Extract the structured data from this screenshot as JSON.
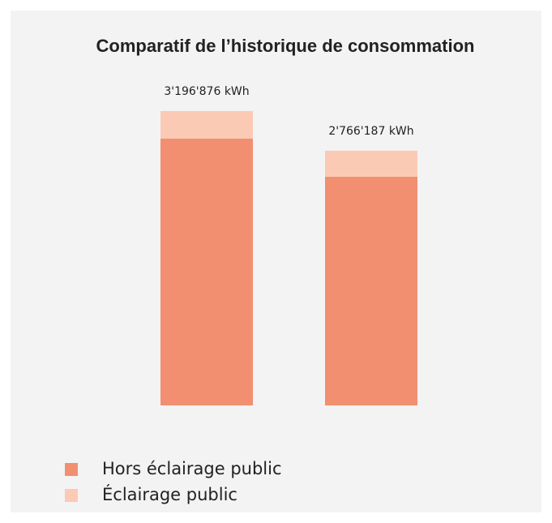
{
  "chart_data": {
    "type": "stacked-bar",
    "title": "Comparatif de l’historique de consommation",
    "categories": [
      null,
      null
    ],
    "series": [
      {
        "name": "Hors éclairage public",
        "color": "#f28f71",
        "values": [
          2897876,
          2484187
        ]
      },
      {
        "name": "Éclairage public",
        "color": "#fbcab5",
        "values": [
          299000,
          282000
        ]
      }
    ],
    "totals": [
      3196876,
      2766187
    ],
    "total_labels": [
      "3'196'876 kWh",
      "2'766'187 kWh"
    ],
    "legend": "bottom-left"
  }
}
